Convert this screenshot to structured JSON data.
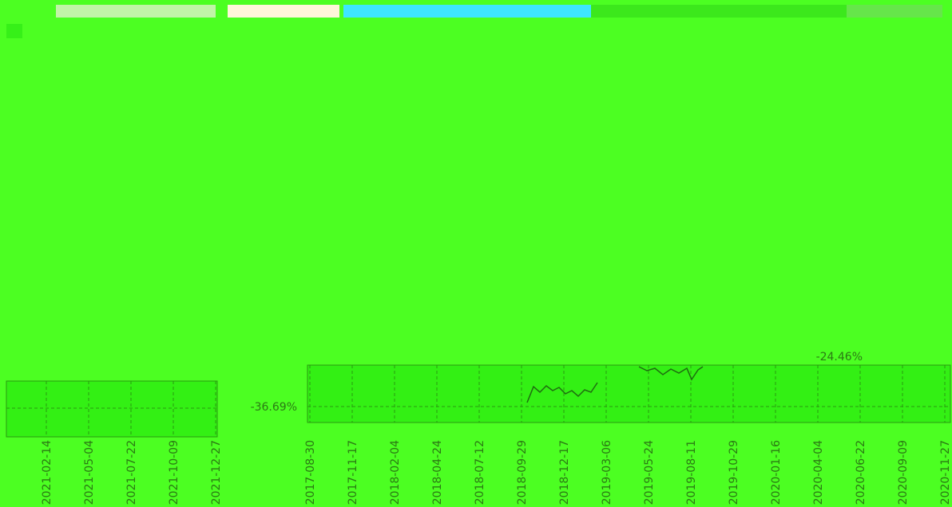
{
  "left_chart": {
    "x_labels": [
      "2021-02-14",
      "2021-05-04",
      "2021-07-22",
      "2021-10-09",
      "2021-12-27"
    ]
  },
  "right_chart": {
    "x_labels": [
      "2017-08-30",
      "2017-11-17",
      "2018-02-04",
      "2018-04-24",
      "2018-07-12",
      "2018-09-29",
      "2018-12-17",
      "2019-03-06",
      "2019-05-24",
      "2019-08-11",
      "2019-10-29",
      "2020-01-16",
      "2020-04-04",
      "2020-06-22",
      "2020-09-09",
      "2020-11-27"
    ],
    "annotations": [
      "-36.69%",
      "-24.46%"
    ]
  }
}
